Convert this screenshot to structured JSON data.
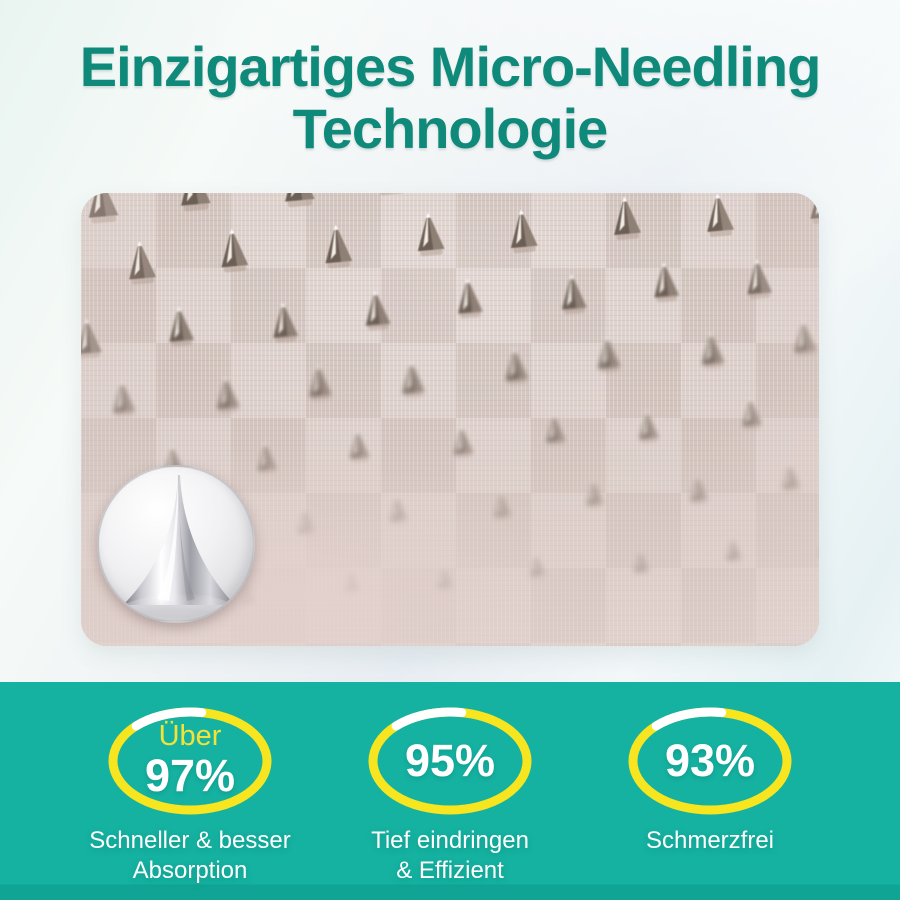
{
  "header": {
    "title_line1": "Einzigartiges Micro-Needling",
    "title_line2": "Technologie"
  },
  "media": {
    "main_photo": "microneedle-patch-macro",
    "inset": "single-needle-tip-closeup"
  },
  "stats_panel": {
    "stats": [
      {
        "prefix": "Über",
        "value": "97%",
        "label_line1": "Schneller & besser",
        "label_line2": "Absorption"
      },
      {
        "prefix": "",
        "value": "95%",
        "label_line1": "Tief eindringen",
        "label_line2": "& Effizient"
      },
      {
        "prefix": "",
        "value": "93%",
        "label_line1": "Schmerzfrei",
        "label_line2": ""
      }
    ]
  },
  "colors": {
    "title_teal": "#0f8a7a",
    "panel_teal": "#15b2a1",
    "ring_yellow": "#f6e51f",
    "prefix_yellow": "#f2e23a",
    "stat_text": "#ffffff"
  }
}
